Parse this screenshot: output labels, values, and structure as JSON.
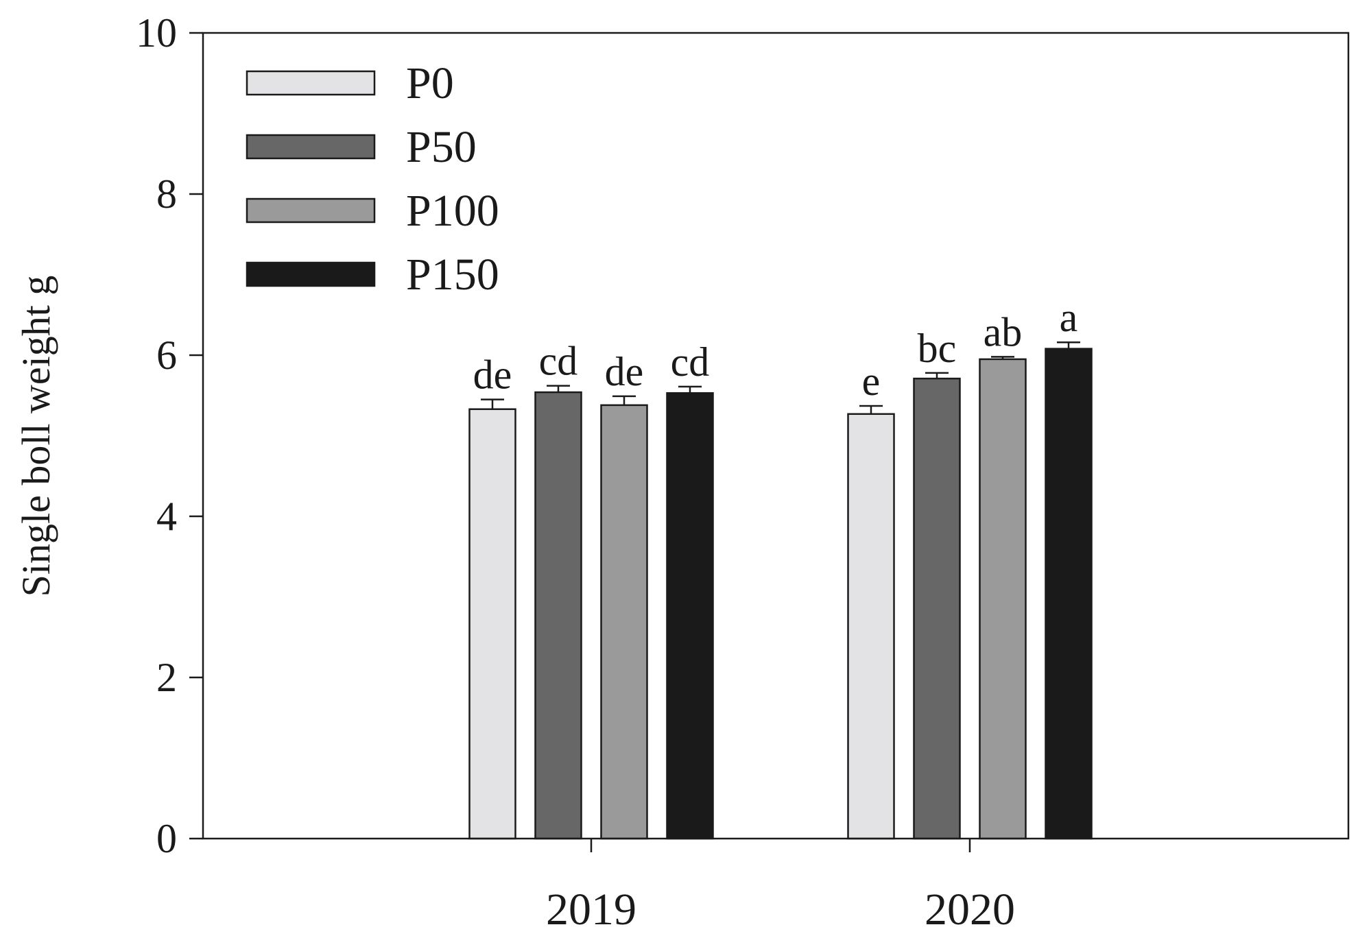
{
  "chart_data": {
    "type": "bar",
    "title": "",
    "xlabel": "",
    "ylabel": "Single boll weight g",
    "ylim": [
      0,
      10
    ],
    "yticks": [
      0,
      2,
      4,
      6,
      8,
      10
    ],
    "grid": false,
    "legend_position": "top-left",
    "categories": [
      "2019",
      "2020"
    ],
    "series": [
      {
        "name": "P0",
        "color": "#e3e3e5",
        "values": [
          5.33,
          5.27
        ],
        "errors": [
          0.12,
          0.1
        ],
        "letters": [
          "de",
          "e"
        ]
      },
      {
        "name": "P50",
        "color": "#666766",
        "values": [
          5.54,
          5.71
        ],
        "errors": [
          0.08,
          0.07
        ],
        "letters": [
          "cd",
          "bc"
        ]
      },
      {
        "name": "P100",
        "color": "#999a99",
        "values": [
          5.38,
          5.95
        ],
        "errors": [
          0.11,
          0.03
        ],
        "letters": [
          "de",
          "ab"
        ]
      },
      {
        "name": "P150",
        "color": "#1a1a1a",
        "values": [
          5.53,
          6.08
        ],
        "errors": [
          0.08,
          0.08
        ],
        "letters": [
          "cd",
          "a"
        ]
      }
    ]
  }
}
